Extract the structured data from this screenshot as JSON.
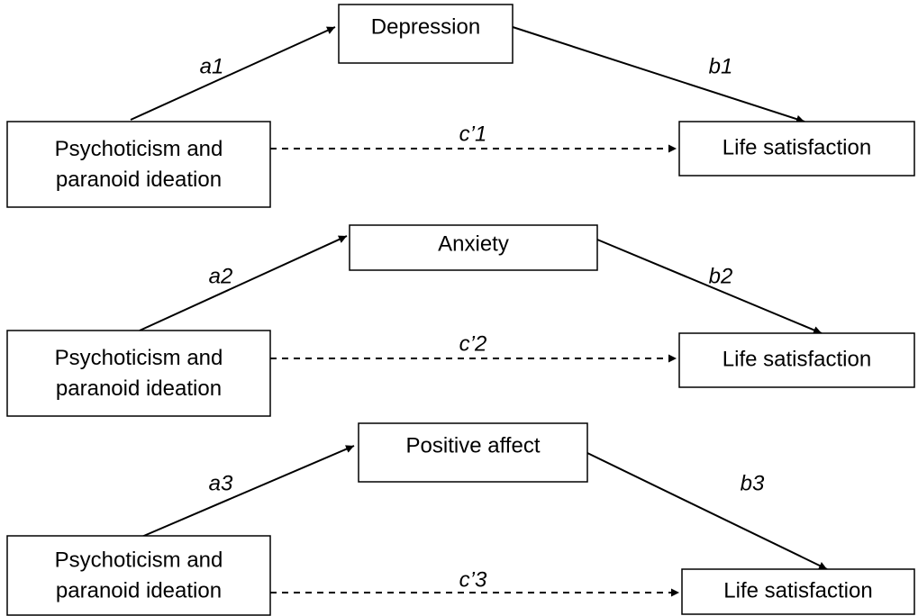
{
  "models": [
    {
      "predictor": [
        "Psychoticism and",
        "paranoid ideation"
      ],
      "mediator": "Depression",
      "outcome": "Life satisfaction",
      "a": "a1",
      "b": "b1",
      "c": "c’1"
    },
    {
      "predictor": [
        "Psychoticism and",
        "paranoid ideation"
      ],
      "mediator": "Anxiety",
      "outcome": "Life satisfaction",
      "a": "a2",
      "b": "b2",
      "c": "c’2"
    },
    {
      "predictor": [
        "Psychoticism and",
        "paranoid ideation"
      ],
      "mediator": "Positive affect",
      "outcome": "Life satisfaction",
      "a": "a3",
      "b": "b3",
      "c": "c’3"
    }
  ]
}
